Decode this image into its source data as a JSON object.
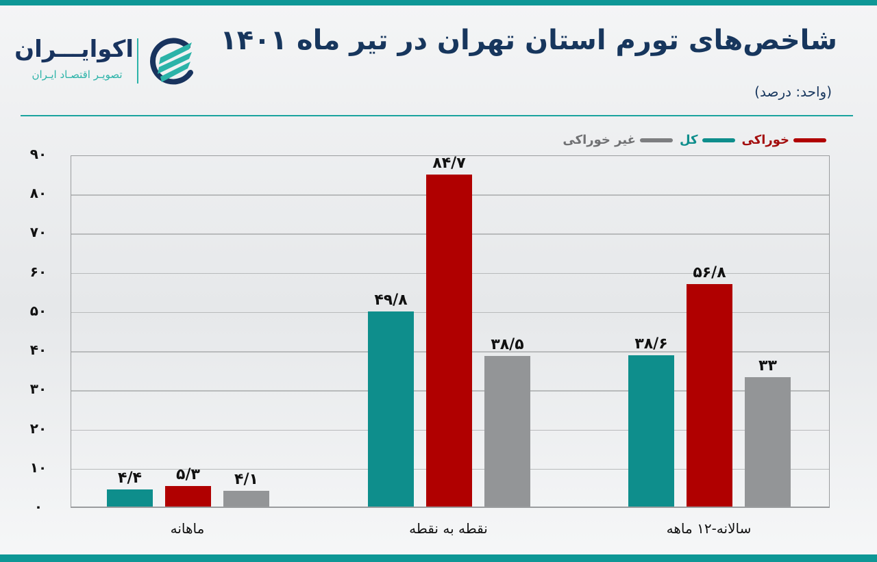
{
  "header": {
    "title": "شاخص‌های تورم استان تهران در تیر ماه ۱۴۰۱",
    "unit": "(واحد: درصد)",
    "logo": {
      "name": "اکوایـــران",
      "tagline": "تصویـر اقتصـاد ایـران",
      "colors": {
        "navy": "#18335e",
        "teal": "#2bb3a8"
      }
    }
  },
  "legend": [
    {
      "label": "خوراکی",
      "color": "#b00000",
      "text_color": "#a30d0d"
    },
    {
      "label": "کل",
      "color": "#0e8e8c",
      "text_color": "#0e8e8c"
    },
    {
      "label": "غیر خوراکی",
      "color": "#7d7e80",
      "text_color": "#707173"
    }
  ],
  "yaxis_ticks": [
    "۹۰",
    "۸۰",
    "۷۰",
    "۶۰",
    "۵۰",
    "۴۰",
    "۳۰",
    "۲۰",
    "۱۰",
    "۰"
  ],
  "categories_display": [
    "ماهانه",
    "نقطه به نقطه",
    "سالانه-۱۲ ماهه"
  ],
  "bar_labels": [
    [
      "۴/۴",
      "۵/۳",
      "۴/۱"
    ],
    [
      "۴۹/۸",
      "۸۴/۷",
      "۳۸/۵"
    ],
    [
      "۳۸/۶",
      "۵۶/۸",
      "۳۳"
    ]
  ],
  "chart_data": {
    "type": "bar",
    "title": "شاخص‌های تورم استان تهران در تیر ماه ۱۴۰۱",
    "subtitle": "(واحد: درصد)",
    "xlabel": "",
    "ylabel": "درصد",
    "categories": [
      "ماهانه",
      "نقطه به نقطه",
      "سالانه-۱۲ ماهه"
    ],
    "series": [
      {
        "name": "کل",
        "color": "#0e8e8c",
        "values": [
          4.4,
          49.8,
          38.6
        ]
      },
      {
        "name": "خوراکی",
        "color": "#b00000",
        "values": [
          5.3,
          84.7,
          56.8
        ]
      },
      {
        "name": "غیر خوراکی",
        "color": "#939597",
        "values": [
          4.1,
          38.5,
          33
        ]
      }
    ],
    "ylim": [
      0,
      90
    ],
    "yticks": [
      0,
      10,
      20,
      30,
      40,
      50,
      60,
      70,
      80,
      90
    ],
    "grid": true,
    "legend_position": "top-right",
    "data_labels": true
  }
}
